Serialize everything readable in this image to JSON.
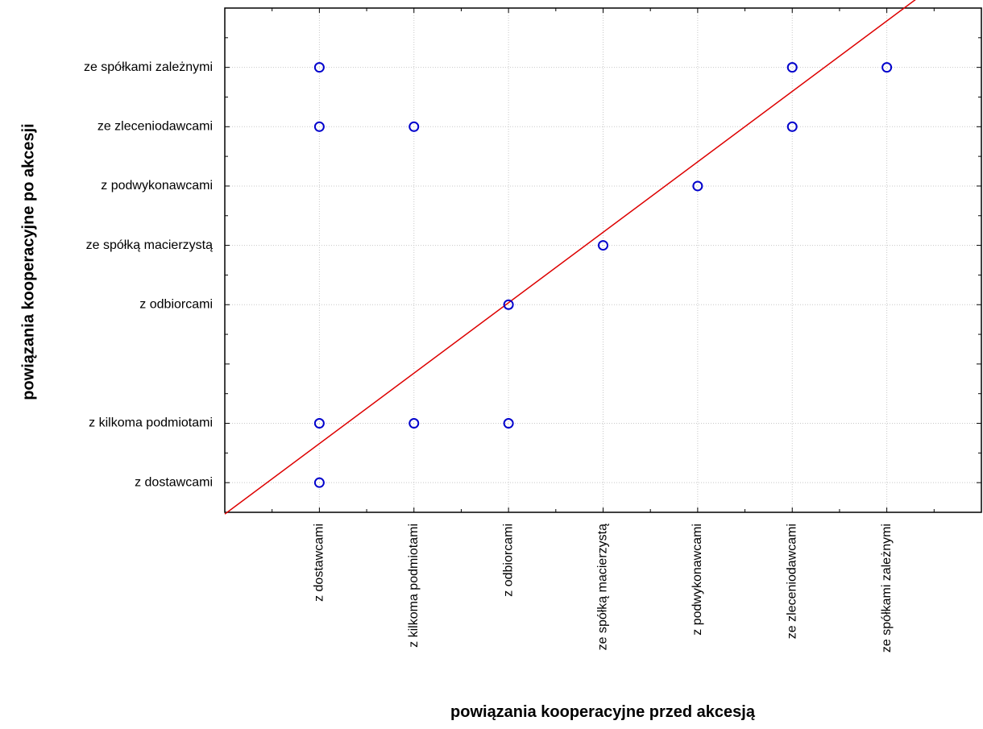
{
  "chart_data": {
    "type": "scatter",
    "title": "",
    "xlabel": "powiązania kooperacyjne przed akcesją",
    "ylabel": "powiązania kooperacyjne po akcesji",
    "xlim": [
      0,
      8
    ],
    "ylim": [
      0.5,
      9.0
    ],
    "x_ticks": [
      {
        "value": 1,
        "label": "z dostawcami"
      },
      {
        "value": 2,
        "label": "z kilkoma podmiotami"
      },
      {
        "value": 3,
        "label": "z odbiorcami"
      },
      {
        "value": 4,
        "label": "ze spółką macierzystą"
      },
      {
        "value": 5,
        "label": "z podwykonawcami"
      },
      {
        "value": 6,
        "label": "ze zleceniodawcami"
      },
      {
        "value": 7,
        "label": "ze spółkami zależnymi"
      }
    ],
    "y_ticks": [
      {
        "value": 1,
        "label": "z dostawcami"
      },
      {
        "value": 2,
        "label": "z kilkoma podmiotami"
      },
      {
        "value": 4,
        "label": "z odbiorcami"
      },
      {
        "value": 5,
        "label": "ze spółką macierzystą"
      },
      {
        "value": 6,
        "label": "z podwykonawcami"
      },
      {
        "value": 7,
        "label": "ze zleceniodawcami"
      },
      {
        "value": 8,
        "label": "ze spółkami zależnymi"
      }
    ],
    "points": [
      {
        "x": 1,
        "y": 8
      },
      {
        "x": 1,
        "y": 7
      },
      {
        "x": 1,
        "y": 2
      },
      {
        "x": 1,
        "y": 1
      },
      {
        "x": 2,
        "y": 7
      },
      {
        "x": 2,
        "y": 2
      },
      {
        "x": 3,
        "y": 4
      },
      {
        "x": 3,
        "y": 2
      },
      {
        "x": 4,
        "y": 5
      },
      {
        "x": 5,
        "y": 6
      },
      {
        "x": 6,
        "y": 8
      },
      {
        "x": 6,
        "y": 7
      },
      {
        "x": 7,
        "y": 8
      }
    ],
    "fit_line": {
      "x1": 0,
      "y1": 0.47,
      "x2": 8,
      "y2": 9.97
    },
    "grid": true,
    "colors": {
      "points": "#0000cc",
      "fit_line": "#dd0000",
      "grid": "#c8c8c8",
      "axes": "#000000"
    }
  }
}
